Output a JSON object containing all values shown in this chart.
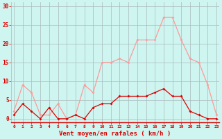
{
  "hours": [
    0,
    1,
    2,
    3,
    4,
    5,
    6,
    7,
    8,
    9,
    10,
    11,
    12,
    13,
    14,
    15,
    16,
    17,
    18,
    19,
    20,
    21,
    22,
    23
  ],
  "vent_moyen": [
    1,
    4,
    2,
    0,
    3,
    0,
    0,
    1,
    0,
    3,
    4,
    4,
    6,
    6,
    6,
    6,
    7,
    8,
    6,
    6,
    2,
    1,
    0,
    0
  ],
  "rafales": [
    2,
    9,
    7,
    1,
    1,
    4,
    0,
    1,
    9,
    7,
    15,
    15,
    16,
    15,
    21,
    21,
    21,
    27,
    27,
    21,
    16,
    15,
    9,
    1
  ],
  "bg_color": "#cef5f0",
  "grid_color": "#aabbbb",
  "line_moyen_color": "#dd0000",
  "line_rafales_color": "#ff9999",
  "xlabel": "Vent moyen/en rafales ( km/h )",
  "xlabel_color": "#dd0000",
  "ytick_labels": [
    "0",
    "5",
    "10",
    "15",
    "20",
    "25",
    "30"
  ],
  "ytick_vals": [
    0,
    5,
    10,
    15,
    20,
    25,
    30
  ],
  "ylim": [
    -1,
    31
  ],
  "xlim": [
    -0.3,
    23.3
  ],
  "spine_bottom_color": "#dd0000"
}
